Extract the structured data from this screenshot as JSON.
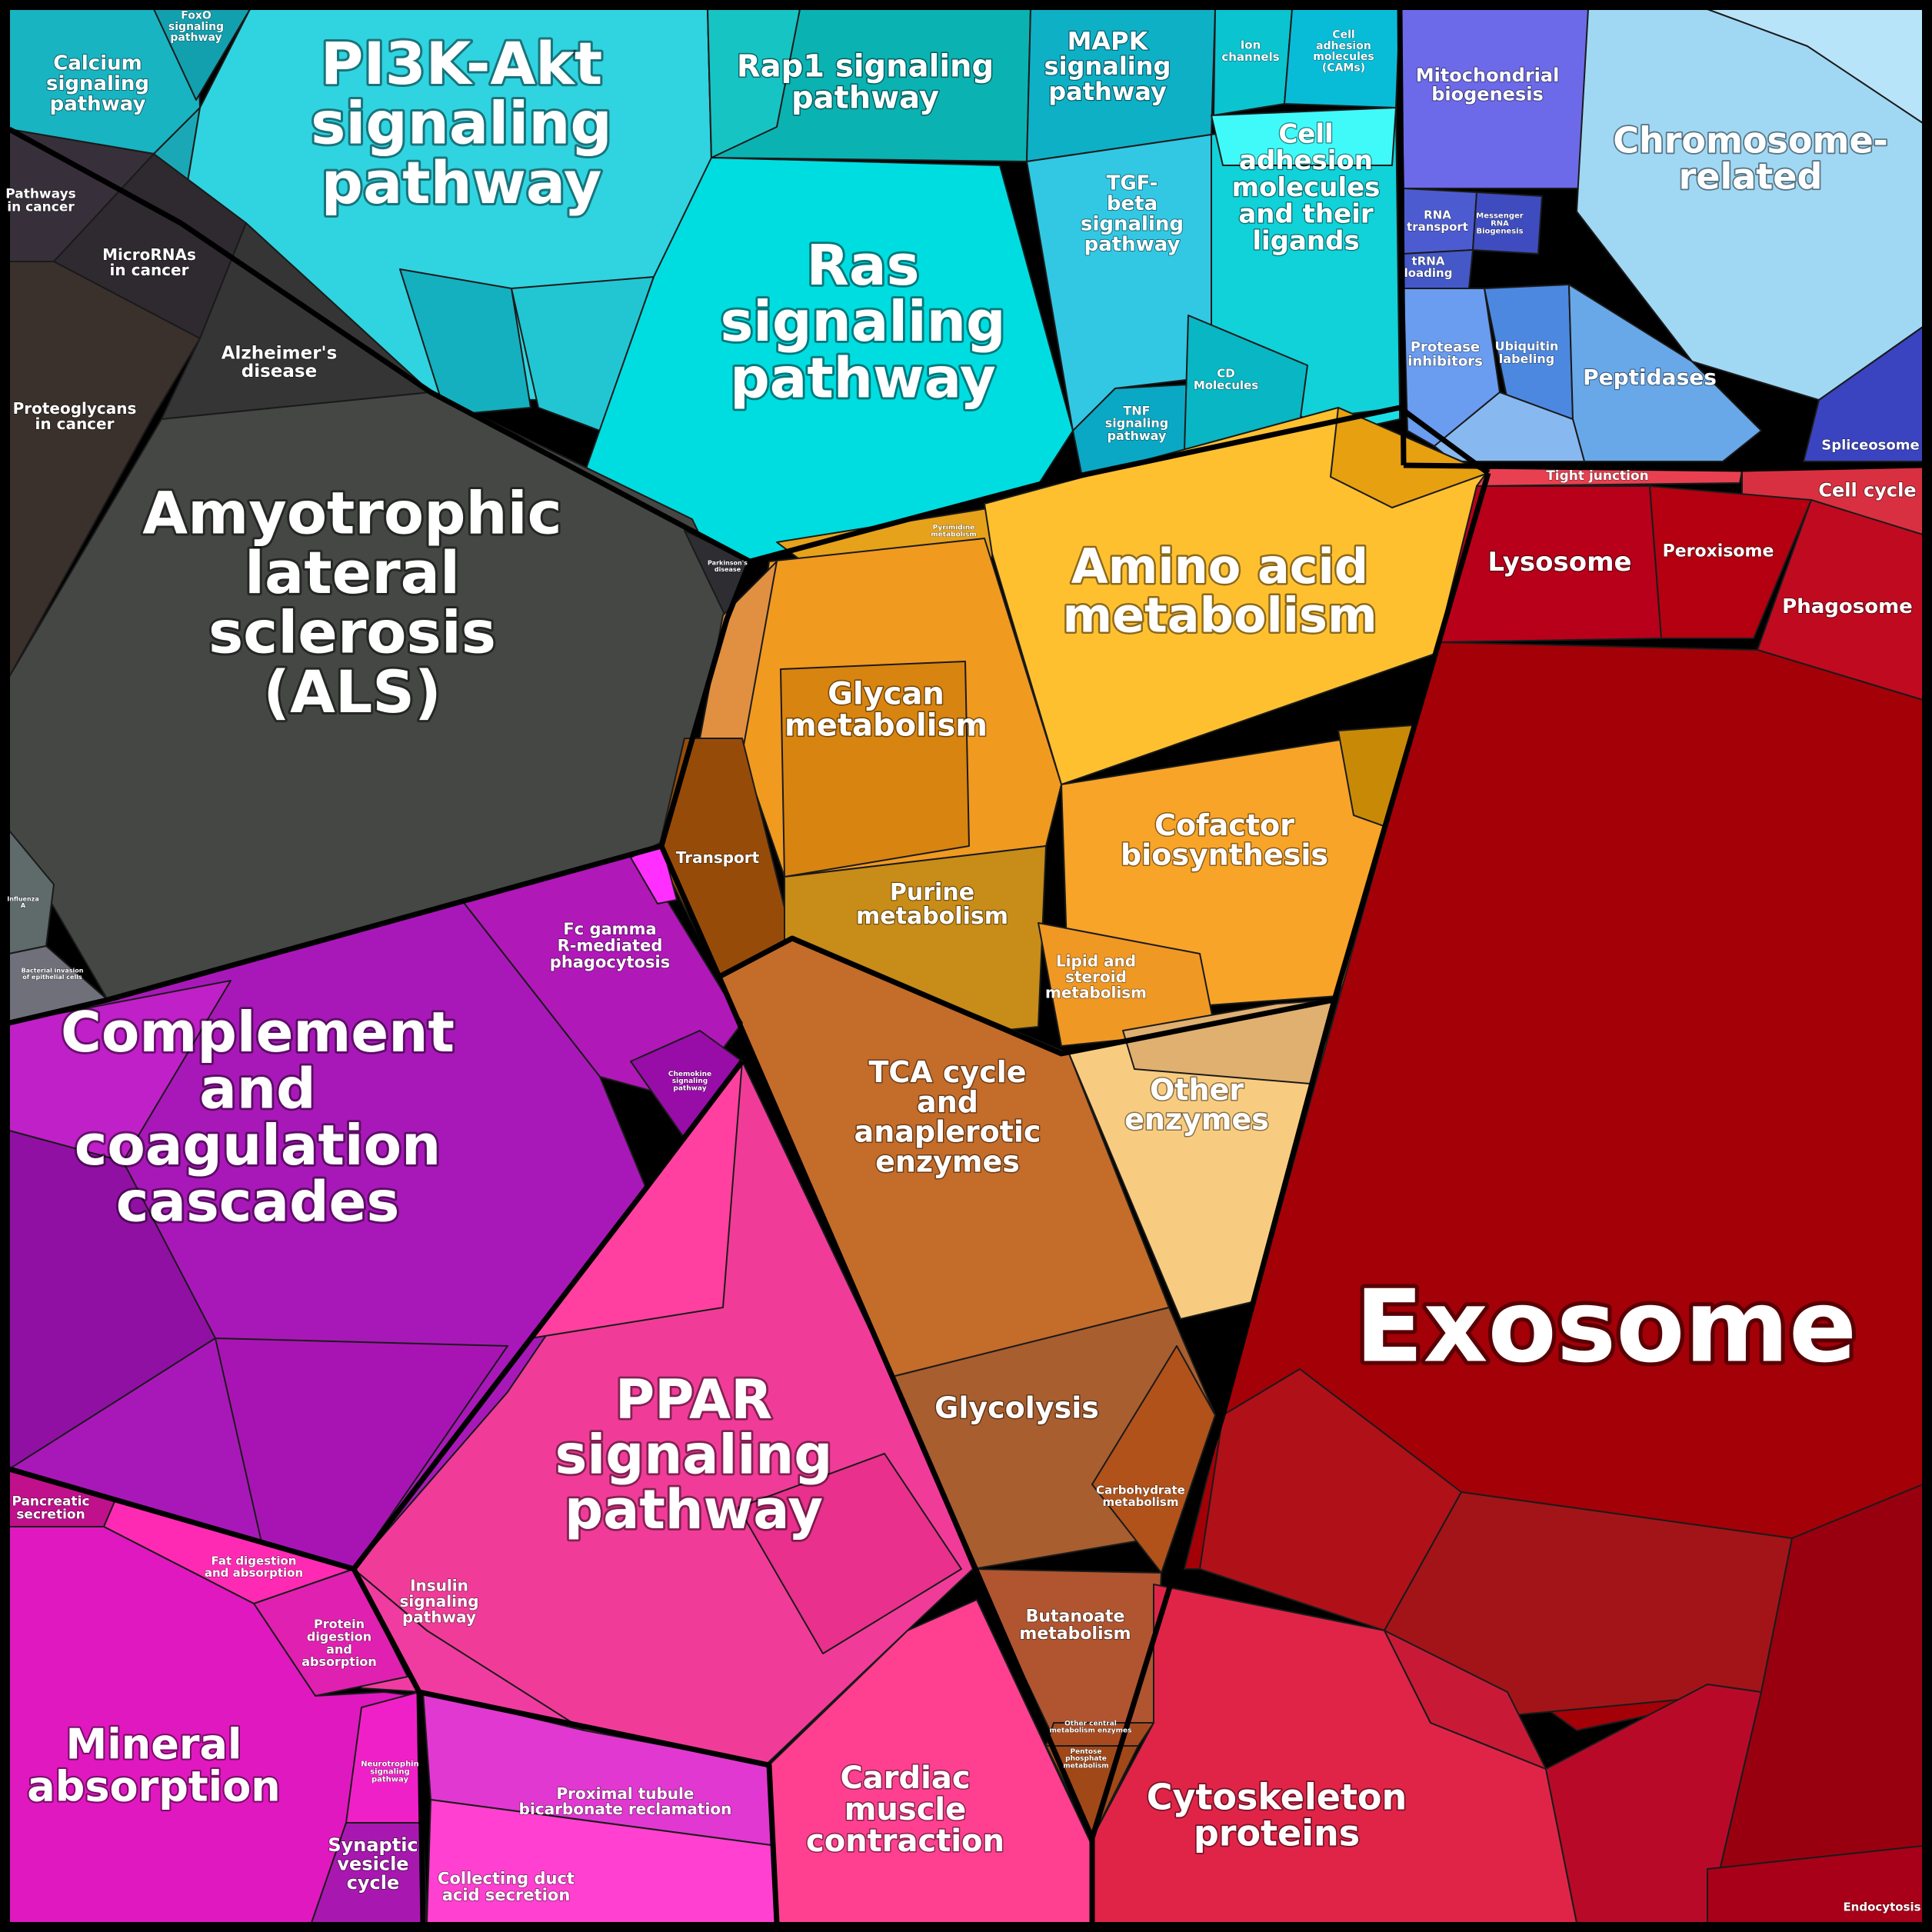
{
  "groups": [
    {
      "id": "signaling",
      "color": "#1fc8d4"
    },
    {
      "id": "membrane-trafficking",
      "color": "#6f8fe8"
    },
    {
      "id": "disease",
      "color": "#3c3e3c"
    },
    {
      "id": "metabolism",
      "color": "#e89a1e"
    },
    {
      "id": "immune",
      "color": "#a814b8"
    },
    {
      "id": "ppar-physiology",
      "color": "#ff3fa0"
    },
    {
      "id": "cellular",
      "color": "#a80010"
    }
  ],
  "labels": [
    {
      "id": "calcium-signaling-pathway",
      "lines": [
        "Calcium",
        "signaling",
        "pathway"
      ],
      "size": 26
    },
    {
      "id": "foxo-signaling-pathway",
      "lines": [
        "FoxO",
        "signaling",
        "pathway"
      ],
      "size": 14
    },
    {
      "id": "pi3k-akt-signaling-pathway",
      "lines": [
        "PI3K-Akt",
        "signaling",
        "pathway"
      ],
      "size": 76
    },
    {
      "id": "rap1-signaling-pathway",
      "lines": [
        "Rap1 signaling",
        "pathway"
      ],
      "size": 40
    },
    {
      "id": "mapk-signaling-pathway",
      "lines": [
        "MAPK",
        "signaling",
        "pathway"
      ],
      "size": 32
    },
    {
      "id": "ion-channels",
      "lines": [
        "Ion",
        "channels"
      ],
      "size": 15
    },
    {
      "id": "cams",
      "lines": [
        "Cell",
        "adhesion",
        "molecules",
        "(CAMs)"
      ],
      "size": 14
    },
    {
      "id": "mitochondrial-biogenesis",
      "lines": [
        "Mitochondrial",
        "biogenesis"
      ],
      "size": 24
    },
    {
      "id": "chromosome-related",
      "lines": [
        "Chromosome-",
        "related"
      ],
      "size": 46
    },
    {
      "id": "pathways-in-cancer",
      "lines": [
        "Pathways",
        "in cancer"
      ],
      "size": 17
    },
    {
      "id": "micrornas-in-cancer",
      "lines": [
        "MicroRNAs",
        "in cancer"
      ],
      "size": 20
    },
    {
      "id": "tgf-beta-signaling-pathway",
      "lines": [
        "TGF-",
        "beta",
        "signaling",
        "pathway"
      ],
      "size": 26
    },
    {
      "id": "cell-adhesion-molecules-ligands",
      "lines": [
        "Cell",
        "adhesion",
        "molecules",
        "and their",
        "ligands"
      ],
      "size": 34
    },
    {
      "id": "rna-transport",
      "lines": [
        "RNA",
        "transport"
      ],
      "size": 15
    },
    {
      "id": "messenger-rna-biogenesis",
      "lines": [
        "Messenger",
        "RNA",
        "Biogenesis"
      ],
      "size": 10
    },
    {
      "id": "trna-loading",
      "lines": [
        "tRNA",
        "loading"
      ],
      "size": 15
    },
    {
      "id": "alzheimers-disease",
      "lines": [
        "Alzheimer's",
        "disease"
      ],
      "size": 23
    },
    {
      "id": "proteoglycans-in-cancer",
      "lines": [
        "Proteoglycans",
        "in cancer"
      ],
      "size": 20
    },
    {
      "id": "ras-signaling-pathway",
      "lines": [
        "Ras",
        "signaling",
        "pathway"
      ],
      "size": 72
    },
    {
      "id": "cd-molecules",
      "lines": [
        "CD",
        "Molecules"
      ],
      "size": 15
    },
    {
      "id": "tnf-signaling-pathway",
      "lines": [
        "TNF",
        "signaling",
        "pathway"
      ],
      "size": 16
    },
    {
      "id": "protease-inhibitors",
      "lines": [
        "Protease",
        "inhibitors"
      ],
      "size": 18
    },
    {
      "id": "ubiquitin-labeling",
      "lines": [
        "Ubiquitin",
        "labeling"
      ],
      "size": 16
    },
    {
      "id": "peptidases",
      "lines": [
        "Peptidases"
      ],
      "size": 28
    },
    {
      "id": "spliceosome",
      "lines": [
        "Spliceosome"
      ],
      "size": 18
    },
    {
      "id": "tight-junction",
      "lines": [
        "Tight junction"
      ],
      "size": 17
    },
    {
      "id": "cell-cycle",
      "lines": [
        "Cell cycle"
      ],
      "size": 24
    },
    {
      "id": "pyrimidine-metabolism",
      "lines": [
        "Pyrimidine",
        "metabolism"
      ],
      "size": 9
    },
    {
      "id": "amino-acid-metabolism",
      "lines": [
        "Amino acid",
        "metabolism"
      ],
      "size": 62
    },
    {
      "id": "lysosome",
      "lines": [
        "Lysosome"
      ],
      "size": 34
    },
    {
      "id": "peroxisome",
      "lines": [
        "Peroxisome"
      ],
      "size": 22
    },
    {
      "id": "phagosome",
      "lines": [
        "Phagosome"
      ],
      "size": 26
    },
    {
      "id": "amyotrophic-lateral-sclerosis",
      "lines": [
        "Amyotrophic",
        "lateral",
        "sclerosis",
        "(ALS)"
      ],
      "size": 76
    },
    {
      "id": "parkinsons-disease",
      "lines": [
        "Parkinson's",
        "disease"
      ],
      "size": 8
    },
    {
      "id": "glycan-metabolism",
      "lines": [
        "Glycan",
        "metabolism"
      ],
      "size": 40
    },
    {
      "id": "transport",
      "lines": [
        "Transport"
      ],
      "size": 20
    },
    {
      "id": "cofactor-biosynthesis",
      "lines": [
        "Cofactor",
        "biosynthesis"
      ],
      "size": 38
    },
    {
      "id": "purine-metabolism",
      "lines": [
        "Purine",
        "metabolism"
      ],
      "size": 30
    },
    {
      "id": "fc-gamma-r-mediated-phagocytosis",
      "lines": [
        "Fc gamma",
        "R-mediated",
        "phagocytosis"
      ],
      "size": 21
    },
    {
      "id": "lipid-and-steroid-metabolism",
      "lines": [
        "Lipid and",
        "steroid",
        "metabolism"
      ],
      "size": 20
    },
    {
      "id": "influenza-a",
      "lines": [
        "Influenza",
        "A"
      ],
      "size": 8
    },
    {
      "id": "bacterial-invasion-of-epithelial-cells",
      "lines": [
        "Bacterial invasion",
        "of epithelial cells"
      ],
      "size": 8
    },
    {
      "id": "chemokine-signaling-pathway",
      "lines": [
        "Chemokine",
        "signaling",
        "pathway"
      ],
      "size": 9
    },
    {
      "id": "other-enzymes",
      "lines": [
        "Other",
        "enzymes"
      ],
      "size": 38
    },
    {
      "id": "complement-and-coagulation-cascades",
      "lines": [
        "Complement",
        "and",
        "coagulation",
        "cascades"
      ],
      "size": 72
    },
    {
      "id": "tca-cycle-and-anaplerotic-enzymes",
      "lines": [
        "TCA cycle",
        "and",
        "anaplerotic",
        "enzymes"
      ],
      "size": 38
    },
    {
      "id": "exosome",
      "lines": [
        "Exosome"
      ],
      "size": 130
    },
    {
      "id": "glycolysis",
      "lines": [
        "Glycolysis"
      ],
      "size": 38
    },
    {
      "id": "ppar-signaling-pathway",
      "lines": [
        "PPAR",
        "signaling",
        "pathway"
      ],
      "size": 70
    },
    {
      "id": "carbohydrate-metabolism",
      "lines": [
        "Carbohydrate",
        "metabolism"
      ],
      "size": 15
    },
    {
      "id": "pancreatic-secretion",
      "lines": [
        "Pancreatic",
        "secretion"
      ],
      "size": 17
    },
    {
      "id": "fat-digestion-and-absorption",
      "lines": [
        "Fat digestion",
        "and absorption"
      ],
      "size": 15
    },
    {
      "id": "insulin-signaling-pathway",
      "lines": [
        "Insulin",
        "signaling",
        "pathway"
      ],
      "size": 20
    },
    {
      "id": "protein-digestion-and-absorption",
      "lines": [
        "Protein",
        "digestion",
        "and",
        "absorption"
      ],
      "size": 16
    },
    {
      "id": "butanoate-metabolism",
      "lines": [
        "Butanoate",
        "metabolism"
      ],
      "size": 22
    },
    {
      "id": "other-central-metabolism-enzymes",
      "lines": [
        "Other central",
        "metabolism enzymes"
      ],
      "size": 9
    },
    {
      "id": "pentose-phosphate-metabolism",
      "lines": [
        "Pentose",
        "phosphate",
        "metabolism"
      ],
      "size": 9
    },
    {
      "id": "mineral-absorption",
      "lines": [
        "Mineral",
        "absorption"
      ],
      "size": 54
    },
    {
      "id": "neurotrophin-signaling-pathway",
      "lines": [
        "Neurotrophin",
        "signaling",
        "pathway"
      ],
      "size": 10
    },
    {
      "id": "proximal-tubule-bicarbonate-reclamation",
      "lines": [
        "Proximal tubule",
        "bicarbonate reclamation"
      ],
      "size": 20
    },
    {
      "id": "cardiac-muscle-contraction",
      "lines": [
        "Cardiac",
        "muscle",
        "contraction"
      ],
      "size": 40
    },
    {
      "id": "cytoskeleton-proteins",
      "lines": [
        "Cytoskeleton",
        "proteins"
      ],
      "size": 46
    },
    {
      "id": "synaptic-vesicle-cycle",
      "lines": [
        "Synaptic",
        "vesicle",
        "cycle"
      ],
      "size": 24
    },
    {
      "id": "collecting-duct-acid-secretion",
      "lines": [
        "Collecting duct",
        "acid secretion"
      ],
      "size": 21
    },
    {
      "id": "endocytosis",
      "lines": [
        "Endocytosis"
      ],
      "size": 15
    }
  ]
}
